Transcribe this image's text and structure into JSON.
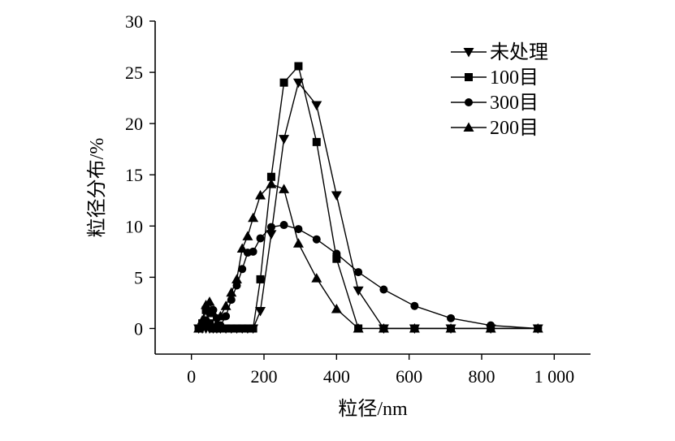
{
  "chart_data": {
    "type": "line",
    "title": "",
    "xlabel": "粒径/nm",
    "ylabel": "粒径分布/%",
    "xlim": [
      -100,
      1100
    ],
    "ylim": [
      -2.5,
      30
    ],
    "xticks": [
      0,
      200,
      400,
      600,
      800,
      1000
    ],
    "xtick_labels": [
      "0",
      "200",
      "400",
      "600",
      "800",
      "1 000"
    ],
    "yticks": [
      0,
      5,
      10,
      15,
      20,
      25,
      30
    ],
    "ytick_labels": [
      "0",
      "5",
      "10",
      "15",
      "20",
      "25",
      "30"
    ],
    "grid": false,
    "legend_position": "top-right",
    "series": [
      {
        "name": "未处理",
        "marker": "triangle-down",
        "x": [
          20,
          30,
          40,
          50,
          60,
          70,
          80,
          95,
          110,
          125,
          140,
          155,
          170,
          190,
          220,
          255,
          295,
          345,
          400,
          460,
          530,
          615,
          715,
          825,
          955
        ],
        "y": [
          0,
          0,
          0,
          0,
          0,
          0,
          0,
          0,
          0,
          0,
          0,
          0,
          0,
          1.7,
          9.2,
          18.5,
          24.0,
          21.8,
          13.0,
          3.7,
          0,
          0,
          0,
          0,
          0
        ]
      },
      {
        "name": "100目",
        "marker": "square",
        "x": [
          20,
          30,
          40,
          50,
          60,
          70,
          80,
          95,
          110,
          125,
          140,
          155,
          170,
          190,
          220,
          255,
          295,
          345,
          400,
          460,
          530,
          615,
          715,
          825,
          955
        ],
        "y": [
          0,
          0.5,
          1.8,
          0.5,
          0,
          0,
          0,
          0,
          0,
          0,
          0,
          0,
          0,
          4.8,
          14.8,
          24.0,
          25.6,
          18.2,
          6.8,
          0,
          0,
          0,
          0,
          0,
          0
        ]
      },
      {
        "name": "300目",
        "marker": "circle",
        "x": [
          20,
          30,
          40,
          50,
          60,
          70,
          80,
          95,
          110,
          125,
          140,
          155,
          170,
          190,
          220,
          255,
          295,
          345,
          400,
          460,
          530,
          615,
          715,
          825,
          955
        ],
        "y": [
          0,
          0.3,
          0.8,
          1.5,
          1.8,
          1.0,
          0.3,
          1.2,
          2.8,
          4.2,
          5.8,
          7.4,
          7.5,
          8.8,
          9.9,
          10.1,
          9.7,
          8.7,
          7.3,
          5.5,
          3.8,
          2.2,
          1.0,
          0.3,
          0
        ]
      },
      {
        "name": "200目",
        "marker": "triangle-up",
        "x": [
          20,
          30,
          40,
          50,
          60,
          70,
          80,
          95,
          110,
          125,
          140,
          155,
          170,
          190,
          220,
          255,
          295,
          345,
          400,
          460,
          530,
          615,
          715,
          825,
          955
        ],
        "y": [
          0,
          0.8,
          2.3,
          2.6,
          1.5,
          0.5,
          1.2,
          2.2,
          3.5,
          4.8,
          7.8,
          9.0,
          10.8,
          13.0,
          14.1,
          13.6,
          8.3,
          4.9,
          1.9,
          0,
          0,
          0,
          0,
          0,
          0
        ]
      }
    ]
  }
}
